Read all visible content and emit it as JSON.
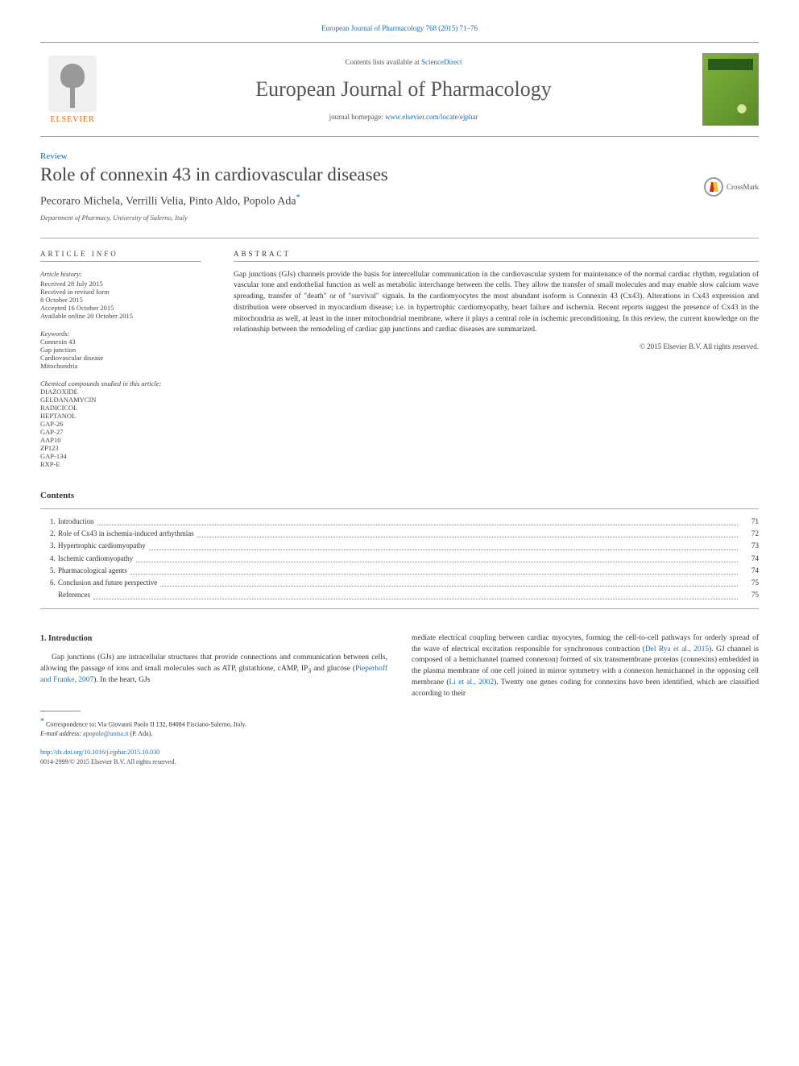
{
  "header_citation": "European Journal of Pharmacology 768 (2015) 71–76",
  "masthead": {
    "contents_prefix": "Contents lists available at ",
    "contents_link": "ScienceDirect",
    "journal_name": "European Journal of Pharmacology",
    "homepage_prefix": "journal homepage: ",
    "homepage_link": "www.elsevier.com/locate/ejphar",
    "publisher": "ELSEVIER"
  },
  "article": {
    "type_label": "Review",
    "title": "Role of connexin 43 in cardiovascular diseases",
    "authors": "Pecoraro Michela, Verrilli Velia, Pinto Aldo, Popolo Ada",
    "corr_symbol": "*",
    "affiliation": "Department of Pharmacy, University of Salerno, Italy",
    "crossmark_label": "CrossMark"
  },
  "info": {
    "heading": "ARTICLE INFO",
    "history_label": "Article history:",
    "history": [
      "Received 28 July 2015",
      "Received in revised form",
      "8 October 2015",
      "Accepted 16 October 2015",
      "Available online 20 October 2015"
    ],
    "keywords_label": "Keywords:",
    "keywords": [
      "Connexin 43",
      "Gap junction",
      "Cardiovascular disease",
      "Mitochondria"
    ],
    "compounds_label": "Chemical compounds studied in this article:",
    "compounds": [
      "DIAZOXIDE",
      "GELDANAMYCIN",
      "RADICICOL",
      "HEPTANOL",
      "GAP-26",
      "GAP-27",
      "AAP10",
      "ZP123",
      "GAP-134",
      "RXP-E"
    ]
  },
  "abstract": {
    "heading": "ABSTRACT",
    "text": "Gap junctions (GJs) channels provide the basis for intercellular communication in the cardiovascular system for maintenance of the normal cardiac rhythm, regulation of vascular tone and endothelial function as well as metabolic interchange between the cells. They allow the transfer of small molecules and may enable slow calcium wave spreading, transfer of \"death\" or of \"survival\" signals. In the cardiomyocytes the most abundant isoform is Connexin 43 (Cx43). Alterations in Cx43 expression and distribution were observed in myocardium disease; i.e. in hypertrophic cardiomyopathy, heart failure and ischemia. Recent reports suggest the presence of Cx43 in the mitochondria as well, at least in the inner mitochondrial membrane, where it plays a central role in ischemic preconditioning. In this review, the current knowledge on the relationship between the remodeling of cardiac gap junctions and cardiac diseases are summarized.",
    "copyright": "© 2015 Elsevier B.V. All rights reserved."
  },
  "contents": {
    "heading": "Contents",
    "items": [
      {
        "num": "1.",
        "title": "Introduction",
        "page": "71"
      },
      {
        "num": "2.",
        "title": "Role of Cx43 in ischemia-induced arrhythmias",
        "page": "72"
      },
      {
        "num": "3.",
        "title": "Hypertrophic cardiomyopathy",
        "page": "73"
      },
      {
        "num": "4.",
        "title": "Ischemic cardiomyopathy",
        "page": "74"
      },
      {
        "num": "5.",
        "title": "Pharmacological agents",
        "page": "74"
      },
      {
        "num": "6.",
        "title": "Conclusion and future perspective",
        "page": "75"
      },
      {
        "num": "",
        "title": "References",
        "page": "75"
      }
    ]
  },
  "body": {
    "section_heading": "1. Introduction",
    "left_para": "Gap junctions (GJs) are intracellular structures that provide connections and communication between cells, allowing the passage of ions and small molecules such as ATP, glutathione, cAMP, IP₃ and glucose (Pieperhoff and Franke, 2007). In the heart, GJs",
    "right_para": "mediate electrical coupling between cardiac myocytes, forming the cell-to-cell pathways for orderly spread of the wave of electrical excitation responsible for synchronous contraction (Del Rya et al., 2015). GJ channel is composed of a hemichannel (named connexon) formed of six transmembrane proteins (connexins) embedded in the plasma membrane of one cell joined in mirror symmetry with a connexon hemichannel in the opposing cell membrane (Li et al., 2002). Twenty one genes coding for connexins have been identified, which are classified according to their",
    "ref_1": "Pieperhoff and Franke, 2007",
    "ref_2": "Del Rya et al., 2015",
    "ref_3": "Li et al., 2002"
  },
  "footnote": {
    "corr_symbol": "*",
    "corr_text": "Correspondence to: Via Giovanni Paolo II 132, 84084 Fisciano-Salerno, Italy.",
    "email_label": "E-mail address: ",
    "email": "apopolo@unisa.it",
    "email_suffix": " (P. Ada)."
  },
  "doi": {
    "link": "http://dx.doi.org/10.1016/j.ejphar.2015.10.030",
    "issn_line": "0014-2999/© 2015 Elsevier B.V. All rights reserved."
  },
  "colors": {
    "link": "#1a6eb0",
    "text": "#333333",
    "elsevier_orange": "#ff6600",
    "cover_green": "#7fb23a"
  }
}
